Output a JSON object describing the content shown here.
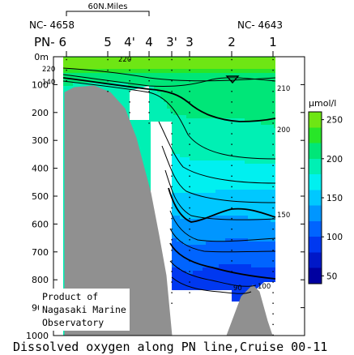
{
  "chart_data": {
    "type": "section-contour",
    "xlabel": "",
    "ylabel": "",
    "y_axis": {
      "range": [
        0,
        1000
      ],
      "ticks": [
        "0m",
        "100",
        "200",
        "300",
        "400",
        "500",
        "600",
        "700",
        "800",
        "900",
        "1000"
      ],
      "reversed": true
    },
    "scale_bar_label": "60N.Miles",
    "endpoint_labels": {
      "left": "NC- 4658",
      "right": "NC- 4643"
    },
    "stations": [
      "PN- 6",
      "5",
      "4'",
      "4",
      "3'",
      "3",
      "2",
      "1"
    ],
    "station_bottom_depth_m": [
      110,
      130,
      230,
      240,
      920,
      880,
      780,
      1000
    ],
    "contour_labels": [
      {
        "text": "220",
        "value": 220
      },
      {
        "text": "220",
        "value": 220
      },
      {
        "text": "140",
        "value": 140
      },
      {
        "text": "210",
        "value": 210
      },
      {
        "text": "200",
        "value": 200
      },
      {
        "text": "150",
        "value": 150
      },
      {
        "text": "90",
        "value": 90
      },
      {
        "text": "100",
        "value": 100
      }
    ],
    "colorbar": {
      "unit": "μmol/l",
      "ticks": [
        "250",
        "200",
        "150",
        "100",
        "50"
      ],
      "range": [
        40,
        260
      ]
    },
    "levels": [
      {
        "max": 60,
        "color": "#0000a0"
      },
      {
        "max": 80,
        "color": "#0018c8"
      },
      {
        "max": 100,
        "color": "#0038f0"
      },
      {
        "max": 120,
        "color": "#0064ff"
      },
      {
        "max": 140,
        "color": "#0096ff"
      },
      {
        "max": 160,
        "color": "#00c8ff"
      },
      {
        "max": 180,
        "color": "#00f0f0"
      },
      {
        "max": 200,
        "color": "#00f0b4"
      },
      {
        "max": 220,
        "color": "#00e678"
      },
      {
        "max": 240,
        "color": "#28e628"
      },
      {
        "max": 260,
        "color": "#6ee614"
      }
    ],
    "colors": {
      "bottom_topography": "#909090"
    }
  },
  "credit_lines": [
    "Product of",
    "Nagasaki Marine",
    "Observatory"
  ],
  "caption": "Dissolved oxygen along PN line,Cruise 00-11"
}
